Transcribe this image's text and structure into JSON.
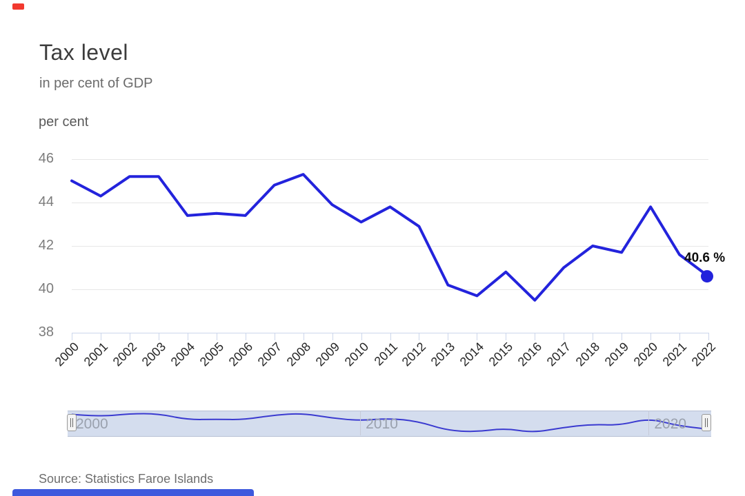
{
  "page": {
    "top_accent_color": "#f2392e",
    "bottom_bar_color": "#3e59dd",
    "background": "#ffffff"
  },
  "chart_data": {
    "type": "line",
    "title": "Tax level",
    "subtitle": "in per cent of GDP",
    "ylabel": "per cent",
    "xlabel": "",
    "x": [
      "2000",
      "2001",
      "2002",
      "2003",
      "2004",
      "2005",
      "2006",
      "2007",
      "2008",
      "2009",
      "2010",
      "2011",
      "2012",
      "2013",
      "2014",
      "2015",
      "2016",
      "2017",
      "2018",
      "2019",
      "2020",
      "2021",
      "2022"
    ],
    "series": [
      {
        "name": "Tax level",
        "color": "#2323dc",
        "values": [
          45.0,
          44.3,
          45.2,
          45.2,
          43.4,
          43.5,
          43.4,
          44.8,
          45.3,
          43.9,
          43.1,
          43.8,
          42.9,
          40.2,
          39.7,
          40.8,
          39.5,
          41.0,
          42.0,
          41.7,
          43.8,
          41.6,
          40.6
        ]
      }
    ],
    "yticks": [
      38,
      40,
      42,
      44,
      46
    ],
    "ylim": [
      38,
      46.7
    ],
    "grid": true,
    "legend": "none",
    "last_point_label": "40.6 %",
    "last_point_value": 40.6
  },
  "navigator": {
    "labels": [
      {
        "label": "2000",
        "year_index": 0
      },
      {
        "label": "2010",
        "year_index": 10
      },
      {
        "label": "2020",
        "year_index": 20
      }
    ],
    "gridline_year_indices": [
      10,
      20
    ],
    "line_color": "#3a3ad0",
    "mask_color": "rgba(102,133,194,0.28)"
  },
  "footer": {
    "source": "Source: Statistics Faroe Islands"
  }
}
